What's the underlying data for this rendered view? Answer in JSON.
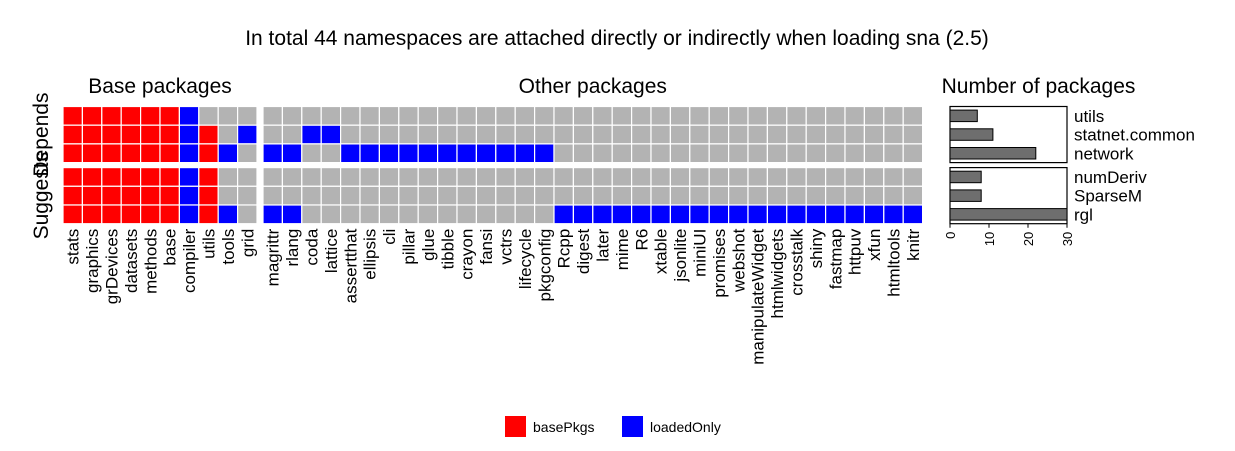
{
  "title": "In total 44 namespaces are attached directly or indirectly when loading sna (2.5)",
  "chart_data": [
    {
      "type": "heatmap",
      "title": "Base packages",
      "rows": [
        "Depends",
        "Suggests"
      ],
      "sub_rows": [
        "utils",
        "statnet.common",
        "network",
        "numDeriv",
        "SparseM",
        "rgl"
      ],
      "columns": [
        "stats",
        "graphics",
        "grDevices",
        "datasets",
        "methods",
        "base",
        "compiler",
        "utils",
        "tools",
        "grid"
      ],
      "cells": [
        [
          "basePkgs",
          "basePkgs",
          "basePkgs",
          "basePkgs",
          "basePkgs",
          "basePkgs",
          "loadedOnly",
          "none",
          "none",
          "none"
        ],
        [
          "basePkgs",
          "basePkgs",
          "basePkgs",
          "basePkgs",
          "basePkgs",
          "basePkgs",
          "loadedOnly",
          "basePkgs",
          "none",
          "loadedOnly"
        ],
        [
          "basePkgs",
          "basePkgs",
          "basePkgs",
          "basePkgs",
          "basePkgs",
          "basePkgs",
          "loadedOnly",
          "basePkgs",
          "loadedOnly",
          "none"
        ],
        [
          "basePkgs",
          "basePkgs",
          "basePkgs",
          "basePkgs",
          "basePkgs",
          "basePkgs",
          "loadedOnly",
          "basePkgs",
          "none",
          "none"
        ],
        [
          "basePkgs",
          "basePkgs",
          "basePkgs",
          "basePkgs",
          "basePkgs",
          "basePkgs",
          "loadedOnly",
          "basePkgs",
          "none",
          "none"
        ],
        [
          "basePkgs",
          "basePkgs",
          "basePkgs",
          "basePkgs",
          "basePkgs",
          "basePkgs",
          "loadedOnly",
          "basePkgs",
          "loadedOnly",
          "none"
        ]
      ]
    },
    {
      "type": "heatmap",
      "title": "Other packages",
      "rows": [
        "Depends",
        "Suggests"
      ],
      "sub_rows": [
        "utils",
        "statnet.common",
        "network",
        "numDeriv",
        "SparseM",
        "rgl"
      ],
      "columns": [
        "magrittr",
        "rlang",
        "coda",
        "lattice",
        "assertthat",
        "ellipsis",
        "cli",
        "pillar",
        "glue",
        "tibble",
        "crayon",
        "fansi",
        "vctrs",
        "lifecycle",
        "pkgconfig",
        "Rcpp",
        "digest",
        "later",
        "mime",
        "R6",
        "xtable",
        "jsonlite",
        "miniUI",
        "promises",
        "webshot",
        "manipulateWidget",
        "htmlwidgets",
        "crosstalk",
        "shiny",
        "fastmap",
        "httpuv",
        "xfun",
        "htmltools",
        "knitr"
      ],
      "loaded_only_columns": [
        [],
        [
          "coda",
          "lattice"
        ],
        [
          "magrittr",
          "rlang",
          "assertthat",
          "ellipsis",
          "cli",
          "pillar",
          "glue",
          "tibble",
          "crayon",
          "fansi",
          "vctrs",
          "lifecycle",
          "pkgconfig"
        ],
        [],
        [],
        [
          "magrittr",
          "rlang",
          "Rcpp",
          "digest",
          "later",
          "mime",
          "R6",
          "xtable",
          "jsonlite",
          "miniUI",
          "promises",
          "webshot",
          "manipulateWidget",
          "htmlwidgets",
          "crosstalk",
          "shiny",
          "fastmap",
          "httpuv",
          "xfun",
          "htmltools",
          "knitr"
        ]
      ]
    },
    {
      "type": "bar",
      "title": "Number of packages",
      "orientation": "horizontal",
      "categories": [
        "utils",
        "statnet.common",
        "network",
        "numDeriv",
        "SparseM",
        "rgl"
      ],
      "values": [
        7,
        11,
        22,
        8,
        8,
        30
      ],
      "xlim": [
        0,
        30
      ],
      "xticks": [
        "0",
        "10",
        "20",
        "30"
      ]
    }
  ],
  "legend": {
    "position": "bottom",
    "items": [
      {
        "label": "basePkgs",
        "color": "#ff0000"
      },
      {
        "label": "loadedOnly",
        "color": "#0000ff"
      }
    ]
  },
  "colors": {
    "basePkgs": "#ff0000",
    "loadedOnly": "#0000ff",
    "none": "#b3b3b3",
    "bar": "#6e6e6e"
  }
}
